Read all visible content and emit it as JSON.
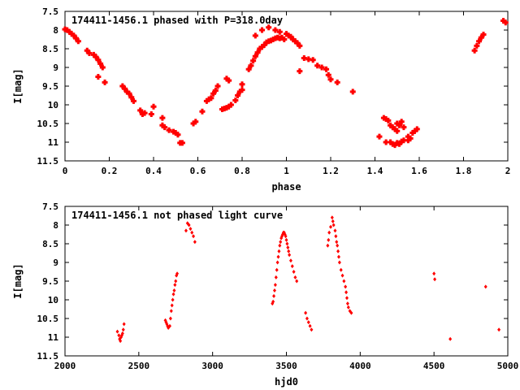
{
  "chart_data": [
    {
      "type": "scatter",
      "title": "174411-1456.1 phased with P=318.0day",
      "xlabel": "phase",
      "ylabel": "I[mag]",
      "xlim": [
        0,
        2
      ],
      "ylim": [
        7.5,
        11.5
      ],
      "y_inverted": true,
      "marker": "filled-cross",
      "color": "#ff0000",
      "xticks": [
        "0",
        "0.2",
        "0.4",
        "0.6",
        "0.8",
        "1",
        "1.2",
        "1.4",
        "1.6",
        "1.8",
        "2"
      ],
      "yticks": [
        "7.5",
        "8",
        "8.5",
        "9",
        "9.5",
        "10",
        "10.5",
        "11",
        "11.5"
      ],
      "points": [
        [
          0.0,
          7.98
        ],
        [
          0.01,
          8.0
        ],
        [
          0.02,
          8.05
        ],
        [
          0.03,
          8.1
        ],
        [
          0.04,
          8.15
        ],
        [
          0.05,
          8.22
        ],
        [
          0.06,
          8.3
        ],
        [
          0.1,
          8.55
        ],
        [
          0.11,
          8.62
        ],
        [
          0.13,
          8.66
        ],
        [
          0.14,
          8.72
        ],
        [
          0.15,
          8.8
        ],
        [
          0.16,
          8.9
        ],
        [
          0.17,
          9.0
        ],
        [
          0.15,
          9.25
        ],
        [
          0.18,
          9.4
        ],
        [
          0.26,
          9.5
        ],
        [
          0.27,
          9.57
        ],
        [
          0.28,
          9.65
        ],
        [
          0.29,
          9.7
        ],
        [
          0.3,
          9.8
        ],
        [
          0.31,
          9.9
        ],
        [
          0.34,
          10.15
        ],
        [
          0.35,
          10.25
        ],
        [
          0.36,
          10.22
        ],
        [
          0.39,
          10.25
        ],
        [
          0.4,
          10.05
        ],
        [
          0.44,
          10.35
        ],
        [
          0.44,
          10.55
        ],
        [
          0.45,
          10.6
        ],
        [
          0.47,
          10.68
        ],
        [
          0.49,
          10.72
        ],
        [
          0.5,
          10.75
        ],
        [
          0.51,
          10.8
        ],
        [
          0.52,
          11.02
        ],
        [
          0.53,
          11.02
        ],
        [
          0.58,
          10.5
        ],
        [
          0.59,
          10.45
        ],
        [
          0.62,
          10.18
        ],
        [
          0.64,
          9.9
        ],
        [
          0.65,
          9.85
        ],
        [
          0.66,
          9.82
        ],
        [
          0.67,
          9.7
        ],
        [
          0.68,
          9.62
        ],
        [
          0.69,
          9.5
        ],
        [
          0.71,
          10.12
        ],
        [
          0.72,
          10.1
        ],
        [
          0.73,
          10.08
        ],
        [
          0.74,
          10.05
        ],
        [
          0.75,
          10.0
        ],
        [
          0.77,
          9.88
        ],
        [
          0.78,
          9.75
        ],
        [
          0.79,
          9.65
        ],
        [
          0.8,
          9.6
        ],
        [
          0.8,
          9.45
        ],
        [
          0.73,
          9.3
        ],
        [
          0.74,
          9.35
        ],
        [
          0.83,
          9.05
        ],
        [
          0.84,
          8.95
        ],
        [
          0.85,
          8.82
        ],
        [
          0.86,
          8.7
        ],
        [
          0.87,
          8.6
        ],
        [
          0.88,
          8.5
        ],
        [
          0.89,
          8.45
        ],
        [
          0.9,
          8.4
        ],
        [
          0.91,
          8.33
        ],
        [
          0.92,
          8.3
        ],
        [
          0.93,
          8.28
        ],
        [
          0.94,
          8.25
        ],
        [
          0.95,
          8.22
        ],
        [
          0.96,
          8.2
        ],
        [
          0.97,
          8.22
        ],
        [
          0.98,
          8.2
        ],
        [
          0.99,
          8.25
        ],
        [
          0.86,
          8.15
        ],
        [
          0.89,
          8.0
        ],
        [
          0.92,
          7.93
        ],
        [
          0.95,
          8.0
        ],
        [
          0.97,
          8.05
        ],
        [
          1.0,
          8.1
        ],
        [
          1.01,
          8.15
        ],
        [
          1.02,
          8.18
        ],
        [
          1.03,
          8.25
        ],
        [
          1.04,
          8.3
        ],
        [
          1.05,
          8.35
        ],
        [
          1.06,
          8.42
        ],
        [
          1.06,
          9.1
        ],
        [
          1.08,
          8.75
        ],
        [
          1.1,
          8.78
        ],
        [
          1.12,
          8.8
        ],
        [
          1.14,
          8.95
        ],
        [
          1.16,
          9.0
        ],
        [
          1.18,
          9.05
        ],
        [
          1.19,
          9.2
        ],
        [
          1.2,
          9.32
        ],
        [
          1.23,
          9.4
        ],
        [
          1.3,
          9.65
        ],
        [
          1.42,
          10.85
        ],
        [
          1.44,
          10.35
        ],
        [
          1.45,
          10.38
        ],
        [
          1.46,
          10.42
        ],
        [
          1.47,
          10.55
        ],
        [
          1.48,
          10.6
        ],
        [
          1.49,
          10.65
        ],
        [
          1.5,
          10.7
        ],
        [
          1.5,
          10.5
        ],
        [
          1.51,
          10.55
        ],
        [
          1.52,
          10.45
        ],
        [
          1.53,
          10.6
        ],
        [
          1.45,
          11.0
        ],
        [
          1.47,
          11.0
        ],
        [
          1.48,
          11.05
        ],
        [
          1.49,
          11.08
        ],
        [
          1.5,
          11.02
        ],
        [
          1.51,
          11.05
        ],
        [
          1.52,
          10.98
        ],
        [
          1.53,
          10.95
        ],
        [
          1.55,
          10.85
        ],
        [
          1.56,
          10.9
        ],
        [
          1.57,
          10.75
        ],
        [
          1.58,
          10.7
        ],
        [
          1.59,
          10.65
        ],
        [
          1.55,
          10.95
        ],
        [
          1.85,
          8.55
        ],
        [
          1.86,
          8.42
        ],
        [
          1.87,
          8.3
        ],
        [
          1.88,
          8.2
        ],
        [
          1.89,
          8.12
        ],
        [
          1.98,
          7.75
        ],
        [
          1.99,
          7.8
        ]
      ]
    },
    {
      "type": "scatter",
      "title": "174411-1456.1 not phased light curve",
      "xlabel": "hjd0",
      "ylabel": "I[mag]",
      "xlim": [
        2000,
        5000
      ],
      "ylim": [
        7.5,
        11.5
      ],
      "y_inverted": true,
      "marker": "small-dot",
      "color": "#ff0000",
      "xticks": [
        "2000",
        "2500",
        "3000",
        "3500",
        "4000",
        "4500",
        "5000"
      ],
      "yticks": [
        "7.5",
        "8",
        "8.5",
        "9",
        "9.5",
        "10",
        "10.5",
        "11",
        "11.5"
      ],
      "points": [
        [
          2355,
          10.85
        ],
        [
          2365,
          10.95
        ],
        [
          2370,
          11.05
        ],
        [
          2375,
          11.1
        ],
        [
          2380,
          11.0
        ],
        [
          2385,
          10.95
        ],
        [
          2390,
          10.9
        ],
        [
          2395,
          10.8
        ],
        [
          2400,
          10.65
        ],
        [
          2680,
          10.55
        ],
        [
          2685,
          10.6
        ],
        [
          2690,
          10.65
        ],
        [
          2695,
          10.7
        ],
        [
          2700,
          10.75
        ],
        [
          2710,
          10.7
        ],
        [
          2715,
          10.5
        ],
        [
          2720,
          10.3
        ],
        [
          2725,
          10.15
        ],
        [
          2730,
          10.0
        ],
        [
          2735,
          9.85
        ],
        [
          2740,
          9.75
        ],
        [
          2745,
          9.6
        ],
        [
          2750,
          9.5
        ],
        [
          2755,
          9.35
        ],
        [
          2760,
          9.3
        ],
        [
          2820,
          8.15
        ],
        [
          2830,
          7.95
        ],
        [
          2840,
          8.0
        ],
        [
          2850,
          8.1
        ],
        [
          2860,
          8.2
        ],
        [
          2870,
          8.3
        ],
        [
          2880,
          8.45
        ],
        [
          3405,
          10.1
        ],
        [
          3410,
          10.05
        ],
        [
          3415,
          9.9
        ],
        [
          3420,
          9.75
        ],
        [
          3425,
          9.6
        ],
        [
          3430,
          9.4
        ],
        [
          3435,
          9.2
        ],
        [
          3440,
          9.0
        ],
        [
          3445,
          8.85
        ],
        [
          3450,
          8.7
        ],
        [
          3455,
          8.55
        ],
        [
          3460,
          8.45
        ],
        [
          3465,
          8.35
        ],
        [
          3470,
          8.3
        ],
        [
          3475,
          8.25
        ],
        [
          3480,
          8.2
        ],
        [
          3485,
          8.2
        ],
        [
          3490,
          8.25
        ],
        [
          3495,
          8.3
        ],
        [
          3500,
          8.4
        ],
        [
          3505,
          8.5
        ],
        [
          3510,
          8.6
        ],
        [
          3515,
          8.7
        ],
        [
          3520,
          8.8
        ],
        [
          3530,
          8.95
        ],
        [
          3540,
          9.1
        ],
        [
          3550,
          9.25
        ],
        [
          3560,
          9.4
        ],
        [
          3570,
          9.5
        ],
        [
          3630,
          10.35
        ],
        [
          3640,
          10.5
        ],
        [
          3650,
          10.6
        ],
        [
          3660,
          10.7
        ],
        [
          3670,
          10.8
        ],
        [
          3780,
          8.55
        ],
        [
          3785,
          8.4
        ],
        [
          3790,
          8.2
        ],
        [
          3800,
          8.05
        ],
        [
          3810,
          7.8
        ],
        [
          3815,
          7.9
        ],
        [
          3820,
          8.0
        ],
        [
          3830,
          8.15
        ],
        [
          3835,
          8.3
        ],
        [
          3840,
          8.45
        ],
        [
          3845,
          8.55
        ],
        [
          3850,
          8.7
        ],
        [
          3855,
          8.85
        ],
        [
          3860,
          9.0
        ],
        [
          3870,
          9.2
        ],
        [
          3880,
          9.35
        ],
        [
          3890,
          9.5
        ],
        [
          3900,
          9.65
        ],
        [
          3905,
          9.8
        ],
        [
          3910,
          9.95
        ],
        [
          3915,
          10.1
        ],
        [
          3920,
          10.2
        ],
        [
          3930,
          10.3
        ],
        [
          3940,
          10.35
        ],
        [
          4500,
          9.3
        ],
        [
          4505,
          9.45
        ],
        [
          4610,
          11.05
        ],
        [
          4850,
          9.65
        ],
        [
          4940,
          10.8
        ]
      ]
    }
  ]
}
